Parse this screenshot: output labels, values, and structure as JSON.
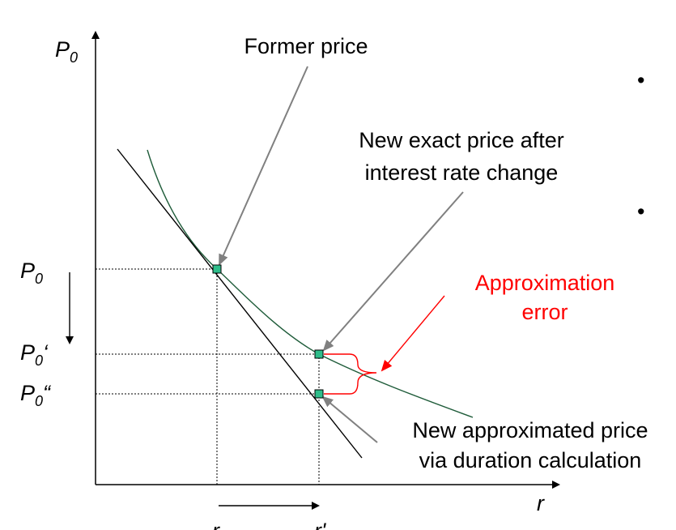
{
  "axes": {
    "y_label": "P",
    "y_label_sub": "0",
    "x_label": "r",
    "x_tick_r0": "r",
    "x_tick_r1": "r'"
  },
  "price_labels": {
    "p0": {
      "main": "P",
      "sub": "0",
      "suffix": ""
    },
    "p0_prime": {
      "main": "P",
      "sub": "0",
      "suffix": "‘"
    },
    "p0_double": {
      "main": "P",
      "sub": "0",
      "suffix": "“"
    }
  },
  "annotations": {
    "former_price": "Former price",
    "exact_price_line1": "New exact price after",
    "exact_price_line2": "interest rate change",
    "approx_error_line1": "Approximation",
    "approx_error_line2": "error",
    "approx_price_line1": "New approximated price",
    "approx_price_line2": "via duration calculation"
  },
  "bullets": [
    "•",
    "•"
  ],
  "colors": {
    "curve": "#1f5c3a",
    "point_fill": "#2ebd8a",
    "error_text": "#ff0000",
    "pointer": "#808080",
    "axis": "#000000"
  },
  "icons": {
    "down_arrow": "arrow-down-icon",
    "right_arrow": "arrow-right-icon"
  }
}
